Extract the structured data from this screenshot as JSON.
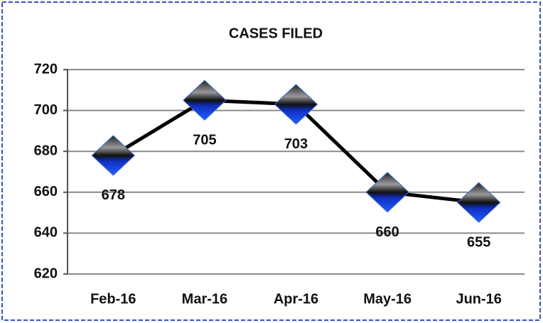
{
  "chart_data": {
    "type": "line",
    "title": "CASES FILED",
    "categories": [
      "Feb-16",
      "Mar-16",
      "Apr-16",
      "May-16",
      "Jun-16"
    ],
    "values": [
      678,
      705,
      703,
      660,
      655
    ],
    "color": "#000000",
    "ylim": [
      620,
      720
    ],
    "yticks": [
      620,
      640,
      660,
      680,
      700,
      720
    ],
    "grid": true
  }
}
